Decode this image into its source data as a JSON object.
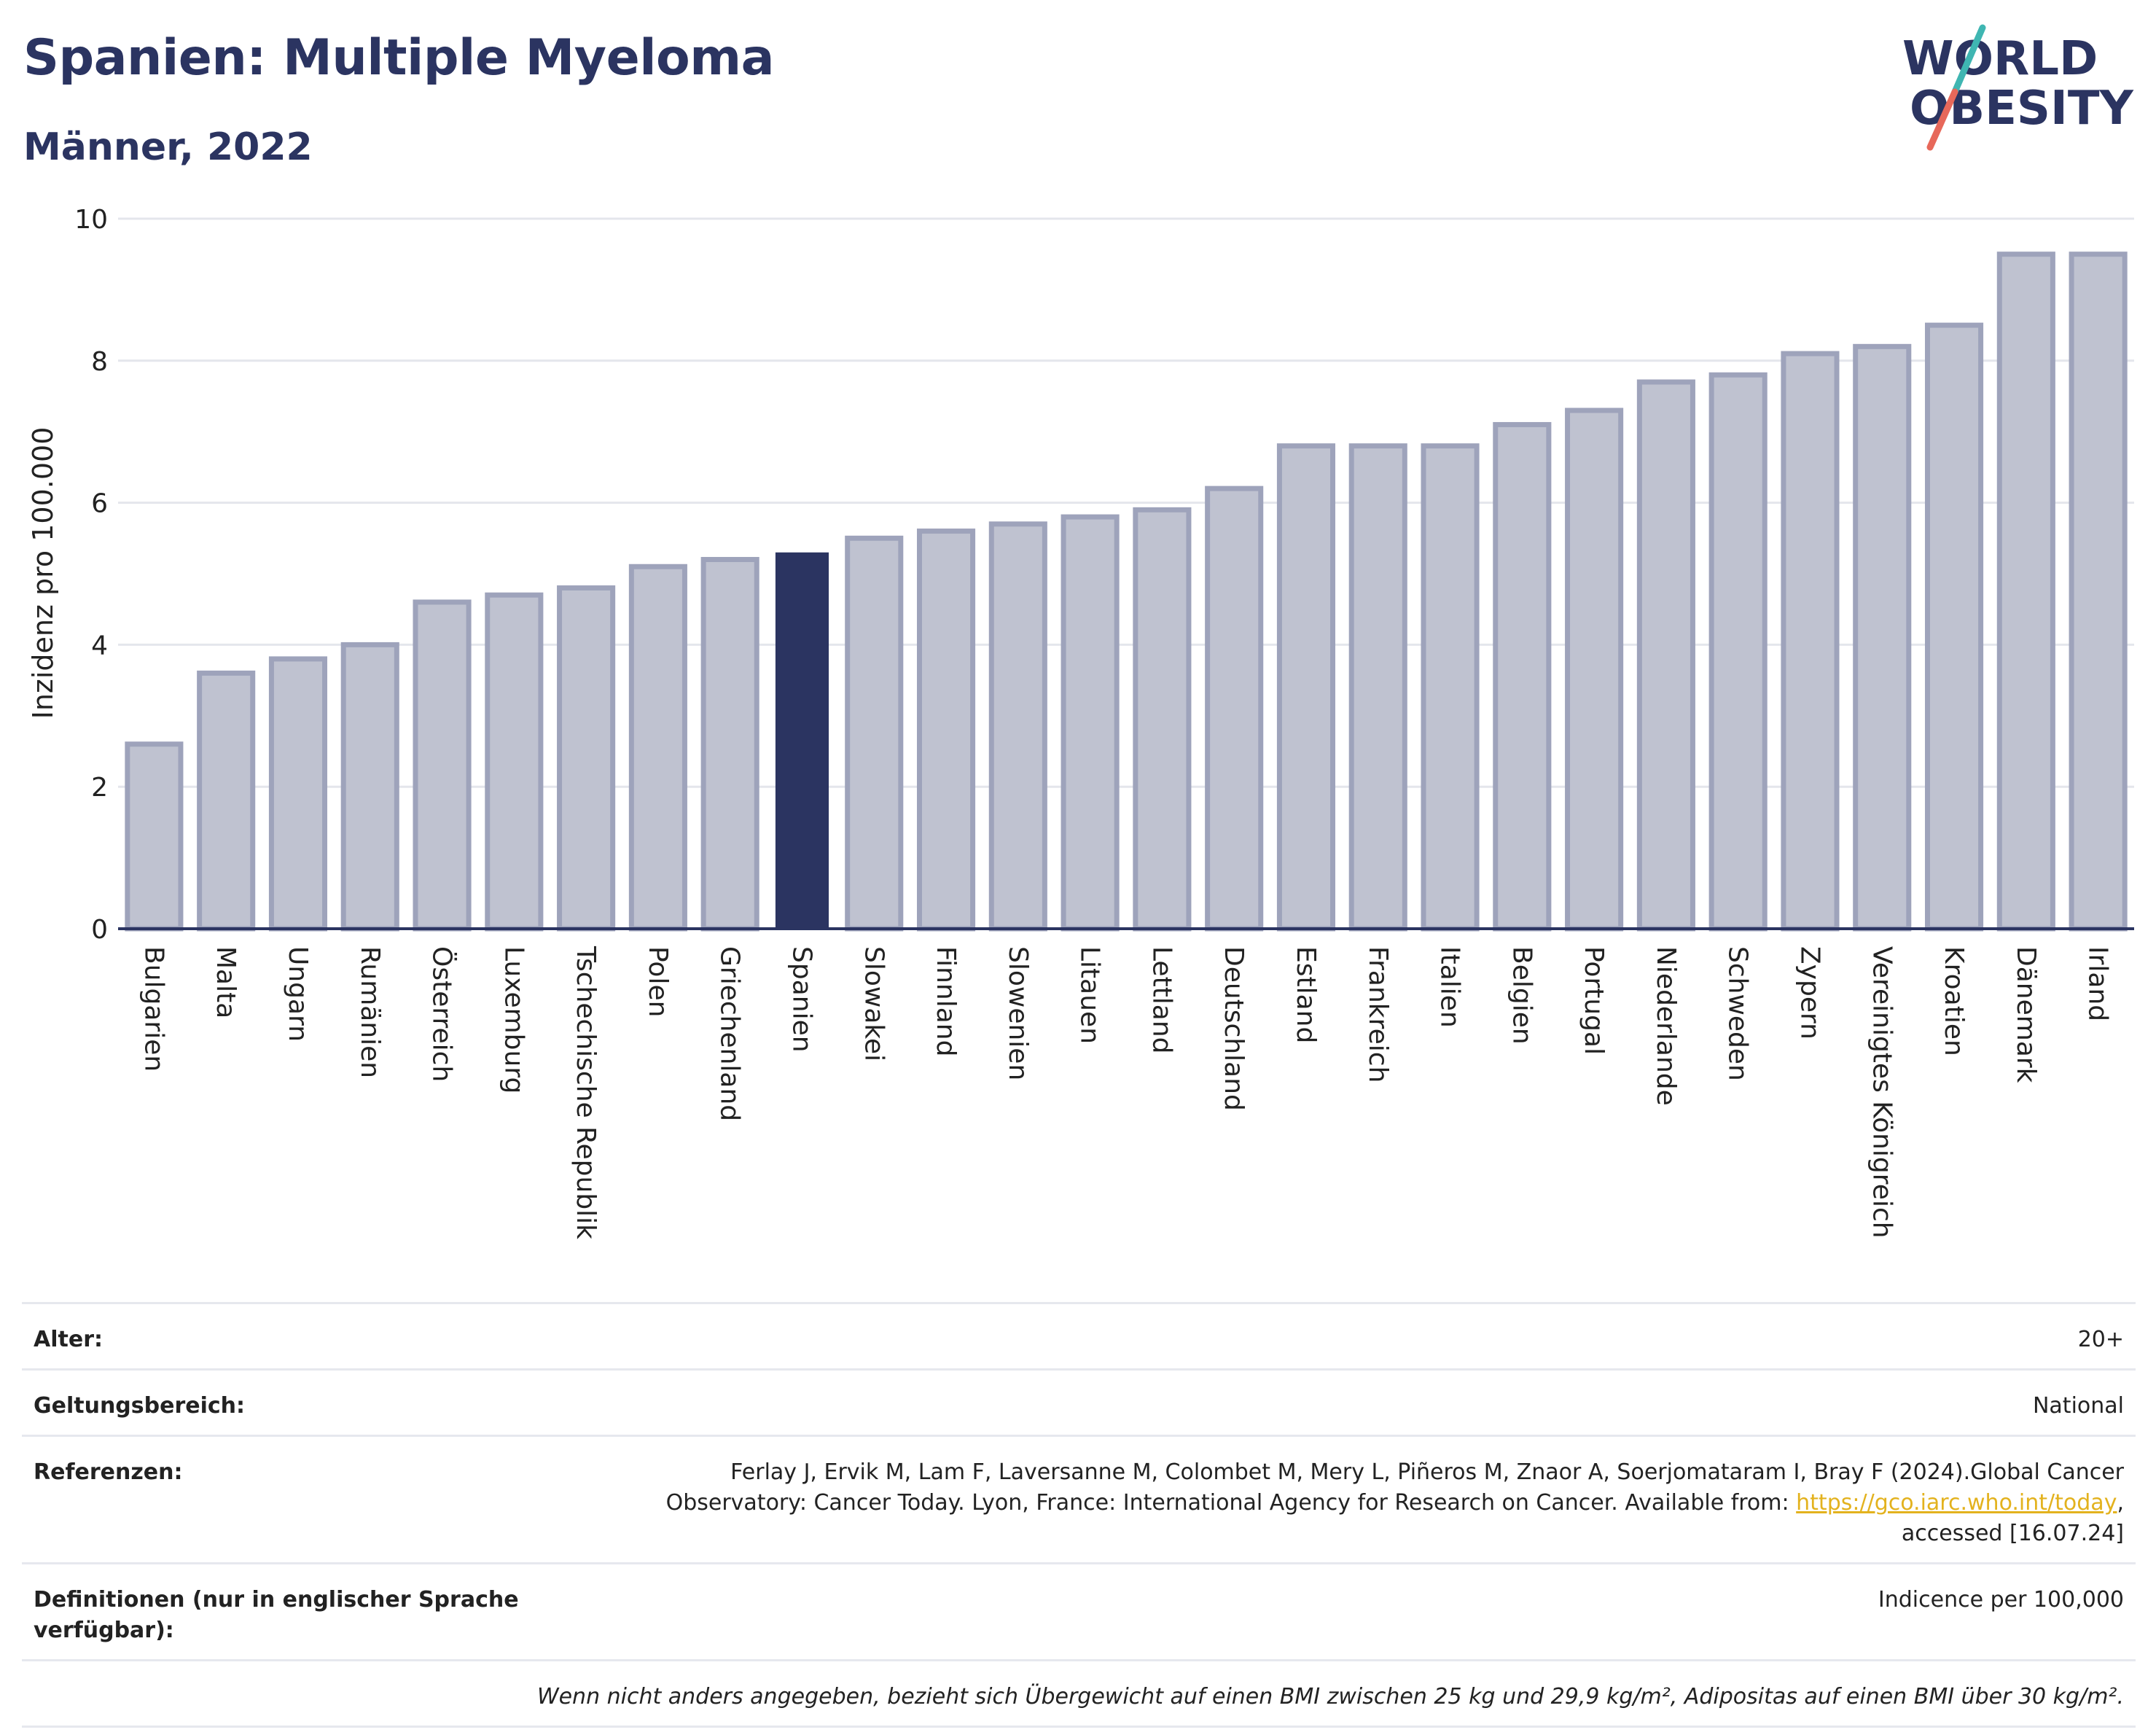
{
  "header": {
    "title": "Spanien: Multiple Myeloma",
    "subtitle": "Männer, 2022"
  },
  "logo": {
    "line1": "WORLD",
    "line2": "OBESITY",
    "colors": {
      "text": "#2b3461",
      "slash_top": "#3fb6b2",
      "slash_bottom": "#e7685a"
    }
  },
  "colors": {
    "bar": "#bfc2d0",
    "bar_border": "#9ea3bb",
    "highlight": "#2b3461",
    "grid": "#e4e6ec",
    "axis": "#2b3461"
  },
  "chart_data": {
    "type": "bar",
    "ylabel": "Inzidenz pro 100.000",
    "ylim": [
      0,
      10
    ],
    "yticks": [
      0,
      2,
      4,
      6,
      8,
      10
    ],
    "grid": true,
    "highlight": "Spanien",
    "categories": [
      "Bulgarien",
      "Malta",
      "Ungarn",
      "Rumänien",
      "Österreich",
      "Luxemburg",
      "Tschechische Republik",
      "Polen",
      "Griechenland",
      "Spanien",
      "Slowakei",
      "Finnland",
      "Slowenien",
      "Litauen",
      "Lettland",
      "Deutschland",
      "Estland",
      "Frankreich",
      "Italien",
      "Belgien",
      "Portugal",
      "Niederlande",
      "Schweden",
      "Zypern",
      "Vereinigtes Königreich",
      "Kroatien",
      "Dänemark",
      "Irland"
    ],
    "values": [
      2.6,
      3.6,
      3.8,
      4.0,
      4.6,
      4.7,
      4.8,
      5.1,
      5.2,
      5.3,
      5.5,
      5.6,
      5.7,
      5.8,
      5.9,
      6.2,
      6.8,
      6.8,
      6.8,
      7.1,
      7.3,
      7.7,
      7.8,
      8.1,
      8.2,
      8.5,
      9.5,
      9.5
    ]
  },
  "meta": {
    "age_label": "Alter:",
    "age_value": "20+",
    "scope_label": "Geltungsbereich:",
    "scope_value": "National",
    "refs_label": "Referenzen:",
    "refs_text_1": "Ferlay J, Ervik M, Lam F, Laversanne M, Colombet M, Mery L, Piñeros M, Znaor A, Soerjomataram I, Bray F (2024).Global Cancer",
    "refs_text_2": "Observatory: Cancer Today. Lyon, France: International Agency for Research on Cancer. Available from: ",
    "refs_link": "https://gco.iarc.who.int/today",
    "refs_text_3": ",",
    "refs_text_4": "accessed [16.07.24]",
    "defs_label": "Definitionen (nur in englischer Sprache verfügbar):",
    "defs_value": "Indicence per 100,000",
    "note": "Wenn nicht anders angegeben, bezieht sich Übergewicht auf einen BMI zwischen 25 kg und 29,9 kg/m², Adipositas auf einen BMI über 30 kg/m²."
  }
}
